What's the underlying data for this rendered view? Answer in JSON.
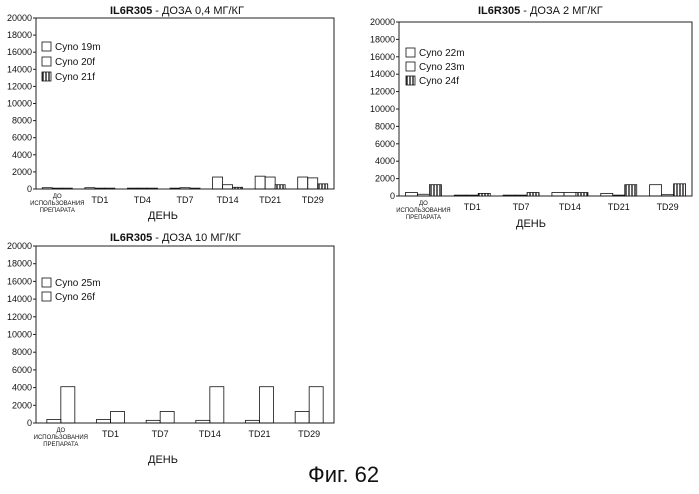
{
  "figure_caption": "Фиг. 62",
  "chart_data": [
    {
      "type": "bar",
      "title_main": "IL6R305",
      "title_sub": " - ДОЗА 0,4 МГ/КГ",
      "xlabel": "ДЕНЬ",
      "categories": [
        "ДО ИСПОЛЬЗОВАНИЯ ПРЕПАРАТА",
        "TD1",
        "TD4",
        "TD7",
        "TD14",
        "TD21",
        "TD29"
      ],
      "yticks": [
        "0",
        "2000",
        "4000",
        "6000",
        "8000",
        "10000",
        "12000",
        "14000",
        "16000",
        "18000",
        "20000"
      ],
      "ylim": [
        0,
        20000
      ],
      "legend_position": "top-left",
      "series": [
        {
          "name": "Cyno 19m",
          "pattern": "hatch-fwd",
          "values": [
            150,
            150,
            100,
            100,
            1400,
            1500,
            1400
          ]
        },
        {
          "name": "Cyno 20f",
          "pattern": "hatch-back",
          "values": [
            100,
            100,
            100,
            150,
            500,
            1400,
            1300
          ]
        },
        {
          "name": "Cyno 21f",
          "pattern": "vertical",
          "values": [
            100,
            100,
            100,
            100,
            200,
            500,
            600
          ]
        }
      ]
    },
    {
      "type": "bar",
      "title_main": "IL6R305",
      "title_sub": " - ДОЗА 2 МГ/КГ",
      "xlabel": "ДЕНЬ",
      "categories": [
        "ДО ИСПОЛЬЗОВАНИЯ ПРЕПАРАТА",
        "TD1",
        "TD7",
        "TD14",
        "TD21",
        "TD29"
      ],
      "yticks": [
        "0",
        "2000",
        "4000",
        "6000",
        "8000",
        "10000",
        "12000",
        "14000",
        "16000",
        "18000",
        "20000"
      ],
      "ylim": [
        0,
        20000
      ],
      "legend_position": "top-left",
      "series": [
        {
          "name": "Cyno 22m",
          "pattern": "hatch-fwd",
          "values": [
            400,
            100,
            100,
            400,
            300,
            1300
          ]
        },
        {
          "name": "Cyno 23m",
          "pattern": "hatch-back",
          "values": [
            200,
            100,
            100,
            400,
            100,
            150
          ]
        },
        {
          "name": "Cyno 24f",
          "pattern": "vertical",
          "values": [
            1300,
            300,
            400,
            400,
            1300,
            1400
          ]
        }
      ]
    },
    {
      "type": "bar",
      "title_main": "IL6R305",
      "title_sub": " - ДОЗА 10 МГ/КГ",
      "xlabel": "ДЕНЬ",
      "categories": [
        "ДО ИСПОЛЬЗОВАНИЯ ПРЕПАРАТА",
        "TD1",
        "TD7",
        "TD14",
        "TD21",
        "TD29"
      ],
      "yticks": [
        "0",
        "2000",
        "4000",
        "6000",
        "8000",
        "10000",
        "12000",
        "14000",
        "16000",
        "18000",
        "20000"
      ],
      "ylim": [
        0,
        20000
      ],
      "legend_position": "top-left",
      "series": [
        {
          "name": "Cyno 25m",
          "pattern": "hatch-fwd",
          "values": [
            400,
            400,
            300,
            300,
            300,
            1300
          ]
        },
        {
          "name": "Cyno 26f",
          "pattern": "hatch-back",
          "values": [
            4100,
            1300,
            1300,
            4100,
            4100,
            4100
          ]
        }
      ]
    }
  ]
}
